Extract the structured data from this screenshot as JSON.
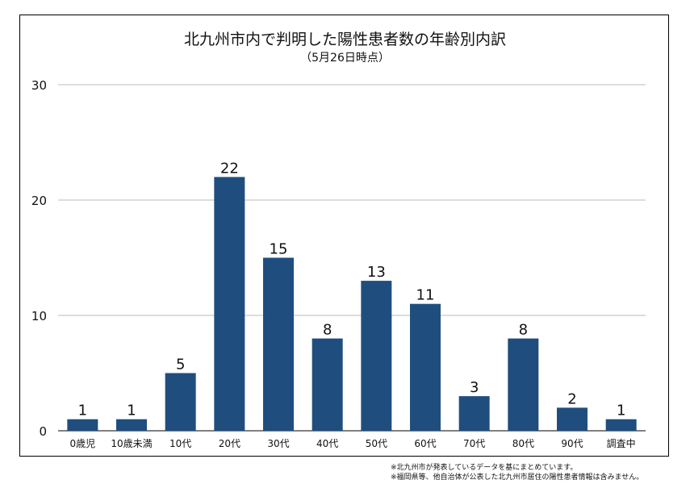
{
  "chart_data": {
    "type": "bar",
    "title": "北九州市内で判明した陽性患者数の年齢別内訳",
    "subtitle": "（5月26日時点）",
    "categories": [
      "0歳児",
      "10歳未満",
      "10代",
      "20代",
      "30代",
      "40代",
      "50代",
      "60代",
      "70代",
      "80代",
      "90代",
      "調査中"
    ],
    "values": [
      1,
      1,
      5,
      22,
      15,
      8,
      13,
      11,
      3,
      8,
      2,
      1
    ],
    "ylim": [
      0,
      30
    ],
    "yticks": [
      0,
      10,
      20,
      30
    ],
    "grid": true,
    "bar_color": "#1f4e7e",
    "data_labels": true
  },
  "notes": [
    "※北九州市が発表しているデータを基にまとめています。",
    "※福岡県等、他自治体が公表した北九州市居住の陽性患者情報は含みません。"
  ]
}
